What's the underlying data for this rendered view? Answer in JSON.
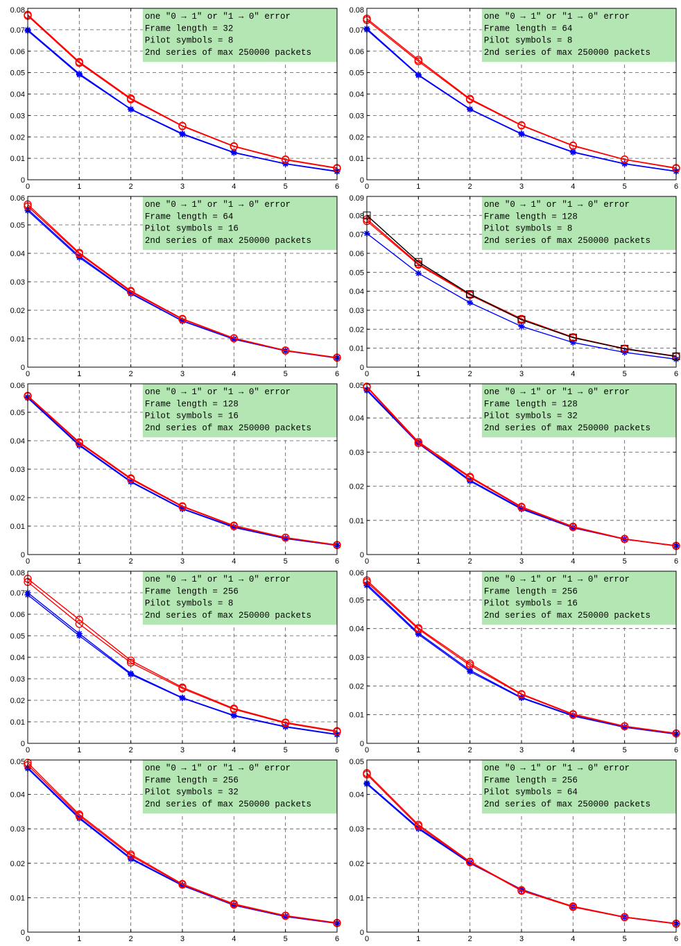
{
  "chart_data": [
    {
      "type": "line",
      "x": [
        0,
        1,
        2,
        3,
        4,
        5,
        6
      ],
      "ylim": [
        0,
        0.08
      ],
      "yticks": [
        "0",
        "0.01",
        "0.02",
        "0.03",
        "0.04",
        "0.05",
        "0.06",
        "0.07",
        "0.08"
      ],
      "xticks": [
        "0",
        "1",
        "2",
        "3",
        "4",
        "5",
        "6"
      ],
      "annotation": [
        "one \"0 → 1\" or \"1 → 0\" error",
        "Frame length = 32",
        "Pilot symbols = 8",
        "2nd series of max 250000 packets"
      ],
      "series": [
        {
          "color": "#0000ff",
          "marker": "star",
          "values": [
            0.07,
            0.0495,
            0.033,
            0.0215,
            0.0128,
            0.0075,
            0.004
          ]
        },
        {
          "color": "#0000ff",
          "marker": "star",
          "values": [
            0.0695,
            0.049,
            0.0328,
            0.0212,
            0.0126,
            0.0074,
            0.0038
          ]
        },
        {
          "color": "#ff0000",
          "marker": "circle",
          "values": [
            0.077,
            0.055,
            0.038,
            0.0252,
            0.0157,
            0.0095,
            0.0055
          ]
        },
        {
          "color": "#ff0000",
          "marker": "circle",
          "values": [
            0.0765,
            0.0545,
            0.0375,
            0.025,
            0.0155,
            0.0093,
            0.0053
          ]
        }
      ]
    },
    {
      "type": "line",
      "x": [
        0,
        1,
        2,
        3,
        4,
        5,
        6
      ],
      "ylim": [
        0,
        0.08
      ],
      "yticks": [
        "0",
        "0.01",
        "0.02",
        "0.03",
        "0.04",
        "0.05",
        "0.06",
        "0.07",
        "0.08"
      ],
      "xticks": [
        "0",
        "1",
        "2",
        "3",
        "4",
        "5",
        "6"
      ],
      "annotation": [
        "one \"0 → 1\" or \"1 → 0\" error",
        "Frame length = 64",
        "Pilot symbols = 8",
        "2nd series of max 250000 packets"
      ],
      "series": [
        {
          "color": "#0000ff",
          "marker": "star",
          "values": [
            0.0705,
            0.049,
            0.033,
            0.0215,
            0.013,
            0.0075,
            0.004
          ]
        },
        {
          "color": "#0000ff",
          "marker": "star",
          "values": [
            0.07,
            0.0487,
            0.0328,
            0.0213,
            0.0128,
            0.0074,
            0.0039
          ]
        },
        {
          "color": "#ff0000",
          "marker": "circle",
          "values": [
            0.0752,
            0.056,
            0.0378,
            0.0255,
            0.016,
            0.0095,
            0.0055
          ]
        },
        {
          "color": "#ff0000",
          "marker": "circle",
          "values": [
            0.0745,
            0.0553,
            0.0374,
            0.0253,
            0.0158,
            0.0094,
            0.0053
          ]
        }
      ]
    },
    {
      "type": "line",
      "x": [
        0,
        1,
        2,
        3,
        4,
        5,
        6
      ],
      "ylim": [
        0,
        0.06
      ],
      "yticks": [
        "0",
        "0.01",
        "0.02",
        "0.03",
        "0.04",
        "0.05",
        "0.06"
      ],
      "xticks": [
        "0",
        "1",
        "2",
        "3",
        "4",
        "5",
        "6"
      ],
      "annotation": [
        "one \"0 → 1\" or \"1 → 0\" error",
        "Frame length = 64",
        "Pilot symbols = 16",
        "2nd series of max 250000 packets"
      ],
      "series": [
        {
          "color": "#0000ff",
          "marker": "star",
          "values": [
            0.055,
            0.0385,
            0.0258,
            0.0162,
            0.0098,
            0.0057,
            0.0032
          ]
        },
        {
          "color": "#0000ff",
          "marker": "star",
          "values": [
            0.0555,
            0.039,
            0.026,
            0.0163,
            0.0099,
            0.0058,
            0.0033
          ]
        },
        {
          "color": "#ff0000",
          "marker": "circle",
          "values": [
            0.0572,
            0.0402,
            0.0268,
            0.017,
            0.0102,
            0.0059,
            0.0034
          ]
        },
        {
          "color": "#ff0000",
          "marker": "circle",
          "values": [
            0.0565,
            0.0398,
            0.0265,
            0.0168,
            0.0101,
            0.0058,
            0.0033
          ]
        }
      ]
    },
    {
      "type": "line",
      "x": [
        0,
        1,
        2,
        3,
        4,
        5,
        6
      ],
      "ylim": [
        0,
        0.09
      ],
      "yticks": [
        "0",
        "0.01",
        "0.02",
        "0.03",
        "0.04",
        "0.05",
        "0.06",
        "0.07",
        "0.08",
        "0.09"
      ],
      "xticks": [
        "0",
        "1",
        "2",
        "3",
        "4",
        "5",
        "6"
      ],
      "annotation": [
        "one \"0 → 1\" or \"1 → 0\" error",
        "Frame length = 128",
        "Pilot symbols = 8",
        "2nd series of max 250000 packets"
      ],
      "series": [
        {
          "color": "#0000ff",
          "marker": "star",
          "values": [
            0.0705,
            0.0495,
            0.034,
            0.0215,
            0.013,
            0.0078,
            0.0042
          ]
        },
        {
          "color": "#ff0000",
          "marker": "circle",
          "values": [
            0.078,
            0.0545,
            0.0385,
            0.0255,
            0.0158,
            0.0098,
            0.0058
          ]
        },
        {
          "color": "#ff0000",
          "marker": "circle",
          "values": [
            0.077,
            0.054,
            0.038,
            0.025,
            0.0155,
            0.0096,
            0.0056
          ]
        },
        {
          "color": "#000000",
          "marker": "square",
          "values": [
            0.08,
            0.0555,
            0.0385,
            0.025,
            0.0156,
            0.0097,
            0.0057
          ]
        }
      ]
    },
    {
      "type": "line",
      "x": [
        0,
        1,
        2,
        3,
        4,
        5,
        6
      ],
      "ylim": [
        0,
        0.06
      ],
      "yticks": [
        "0",
        "0.01",
        "0.02",
        "0.03",
        "0.04",
        "0.05",
        "0.06"
      ],
      "xticks": [
        "0",
        "1",
        "2",
        "3",
        "4",
        "5",
        "6"
      ],
      "annotation": [
        "one \"0 → 1\" or \"1 → 0\" error",
        "Frame length = 128",
        "Pilot symbols = 16",
        "2nd series of max 250000 packets"
      ],
      "series": [
        {
          "color": "#0000ff",
          "marker": "star",
          "values": [
            0.055,
            0.0383,
            0.0255,
            0.016,
            0.0095,
            0.0056,
            0.0032
          ]
        },
        {
          "color": "#0000ff",
          "marker": "star",
          "values": [
            0.0553,
            0.0386,
            0.0257,
            0.0162,
            0.0097,
            0.0057,
            0.0033
          ]
        },
        {
          "color": "#ff0000",
          "marker": "circle",
          "values": [
            0.0558,
            0.0395,
            0.0268,
            0.017,
            0.0102,
            0.006,
            0.0034
          ]
        },
        {
          "color": "#ff0000",
          "marker": "circle",
          "values": [
            0.0556,
            0.0392,
            0.0265,
            0.0168,
            0.01,
            0.0059,
            0.0033
          ]
        }
      ]
    },
    {
      "type": "line",
      "x": [
        0,
        1,
        2,
        3,
        4,
        5,
        6
      ],
      "ylim": [
        0,
        0.05
      ],
      "yticks": [
        "0",
        "0.01",
        "0.02",
        "0.03",
        "0.04",
        "0.05"
      ],
      "xticks": [
        "0",
        "1",
        "2",
        "3",
        "4",
        "5",
        "6"
      ],
      "annotation": [
        "one \"0 → 1\" or \"1 → 0\" error",
        "Frame length = 128",
        "Pilot symbols = 32",
        "2nd series of max 250000 packets"
      ],
      "series": [
        {
          "color": "#0000ff",
          "marker": "star",
          "values": [
            0.048,
            0.0325,
            0.0215,
            0.0133,
            0.0078,
            0.0045,
            0.0025
          ]
        },
        {
          "color": "#0000ff",
          "marker": "star",
          "values": [
            0.0483,
            0.0328,
            0.0218,
            0.0135,
            0.0079,
            0.0045,
            0.0026
          ]
        },
        {
          "color": "#ff0000",
          "marker": "circle",
          "values": [
            0.0492,
            0.033,
            0.0228,
            0.014,
            0.0082,
            0.0046,
            0.0026
          ]
        },
        {
          "color": "#ff0000",
          "marker": "circle",
          "values": [
            0.049,
            0.0326,
            0.0225,
            0.0138,
            0.008,
            0.0045,
            0.0025
          ]
        }
      ]
    },
    {
      "type": "line",
      "x": [
        0,
        1,
        2,
        3,
        4,
        5,
        6
      ],
      "ylim": [
        0,
        0.08
      ],
      "yticks": [
        "0",
        "0.01",
        "0.02",
        "0.03",
        "0.04",
        "0.05",
        "0.06",
        "0.07",
        "0.08"
      ],
      "xticks": [
        "0",
        "1",
        "2",
        "3",
        "4",
        "5",
        "6"
      ],
      "annotation": [
        "one \"0 → 1\" or \"1 → 0\" error",
        "Frame length = 256",
        "Pilot symbols = 8",
        "2nd series of max 250000 packets"
      ],
      "series": [
        {
          "color": "#0000ff",
          "marker": "star",
          "values": [
            0.07,
            0.051,
            0.0325,
            0.0212,
            0.013,
            0.0078,
            0.0042
          ]
        },
        {
          "color": "#0000ff",
          "marker": "star",
          "values": [
            0.069,
            0.05,
            0.032,
            0.021,
            0.0128,
            0.0076,
            0.004
          ]
        },
        {
          "color": "#ff0000",
          "marker": "circle",
          "values": [
            0.0765,
            0.0575,
            0.0385,
            0.026,
            0.0162,
            0.0097,
            0.0057
          ]
        },
        {
          "color": "#ff0000",
          "marker": "circle",
          "values": [
            0.075,
            0.0555,
            0.0375,
            0.0255,
            0.0158,
            0.0094,
            0.0054
          ]
        }
      ]
    },
    {
      "type": "line",
      "x": [
        0,
        1,
        2,
        3,
        4,
        5,
        6
      ],
      "ylim": [
        0,
        0.06
      ],
      "yticks": [
        "0",
        "0.01",
        "0.02",
        "0.03",
        "0.04",
        "0.05",
        "0.06"
      ],
      "xticks": [
        "0",
        "1",
        "2",
        "3",
        "4",
        "5",
        "6"
      ],
      "annotation": [
        "one \"0 → 1\" or \"1 → 0\" error",
        "Frame length = 256",
        "Pilot symbols = 16",
        "2nd series of max 250000 packets"
      ],
      "series": [
        {
          "color": "#0000ff",
          "marker": "star",
          "values": [
            0.055,
            0.038,
            0.025,
            0.0158,
            0.0095,
            0.0056,
            0.0032
          ]
        },
        {
          "color": "#0000ff",
          "marker": "star",
          "values": [
            0.0555,
            0.0385,
            0.0255,
            0.016,
            0.0097,
            0.0057,
            0.0033
          ]
        },
        {
          "color": "#ff0000",
          "marker": "circle",
          "values": [
            0.0568,
            0.0402,
            0.0278,
            0.0172,
            0.0102,
            0.006,
            0.0035
          ]
        },
        {
          "color": "#ff0000",
          "marker": "circle",
          "values": [
            0.0562,
            0.0398,
            0.0272,
            0.017,
            0.01,
            0.0059,
            0.0034
          ]
        }
      ]
    },
    {
      "type": "line",
      "x": [
        0,
        1,
        2,
        3,
        4,
        5,
        6
      ],
      "ylim": [
        0,
        0.05
      ],
      "yticks": [
        "0",
        "0.01",
        "0.02",
        "0.03",
        "0.04",
        "0.05"
      ],
      "xticks": [
        "0",
        "1",
        "2",
        "3",
        "4",
        "5",
        "6"
      ],
      "annotation": [
        "one \"0 → 1\" or \"1 → 0\" error",
        "Frame length = 256",
        "Pilot symbols = 32",
        "2nd series of max 250000 packets"
      ],
      "series": [
        {
          "color": "#0000ff",
          "marker": "star",
          "values": [
            0.0475,
            0.033,
            0.0212,
            0.0135,
            0.0078,
            0.0045,
            0.0025
          ]
        },
        {
          "color": "#0000ff",
          "marker": "star",
          "values": [
            0.0478,
            0.0333,
            0.0215,
            0.0136,
            0.0079,
            0.0046,
            0.0026
          ]
        },
        {
          "color": "#ff0000",
          "marker": "circle",
          "values": [
            0.0492,
            0.0342,
            0.0226,
            0.014,
            0.0082,
            0.0048,
            0.0027
          ]
        },
        {
          "color": "#ff0000",
          "marker": "circle",
          "values": [
            0.0485,
            0.0338,
            0.0222,
            0.0138,
            0.008,
            0.0047,
            0.0026
          ]
        }
      ]
    },
    {
      "type": "line",
      "x": [
        0,
        1,
        2,
        3,
        4,
        5,
        6
      ],
      "ylim": [
        0,
        0.05
      ],
      "yticks": [
        "0",
        "0.01",
        "0.02",
        "0.03",
        "0.04",
        "0.05"
      ],
      "xticks": [
        "0",
        "1",
        "2",
        "3",
        "4",
        "5",
        "6"
      ],
      "annotation": [
        "one \"0 → 1\" or \"1 → 0\" error",
        "Frame length = 256",
        "Pilot symbols = 64",
        "2nd series of max 250000 packets"
      ],
      "series": [
        {
          "color": "#0000ff",
          "marker": "star",
          "values": [
            0.043,
            0.03,
            0.02,
            0.0123,
            0.0073,
            0.0043,
            0.0024
          ]
        },
        {
          "color": "#0000ff",
          "marker": "star",
          "values": [
            0.0433,
            0.0303,
            0.0202,
            0.0124,
            0.0074,
            0.0044,
            0.0025
          ]
        },
        {
          "color": "#ff0000",
          "marker": "circle",
          "values": [
            0.0462,
            0.0312,
            0.0205,
            0.0122,
            0.0075,
            0.0044,
            0.0025
          ]
        },
        {
          "color": "#ff0000",
          "marker": "circle",
          "values": [
            0.0458,
            0.0308,
            0.0203,
            0.012,
            0.0073,
            0.0043,
            0.0024
          ]
        }
      ]
    }
  ]
}
